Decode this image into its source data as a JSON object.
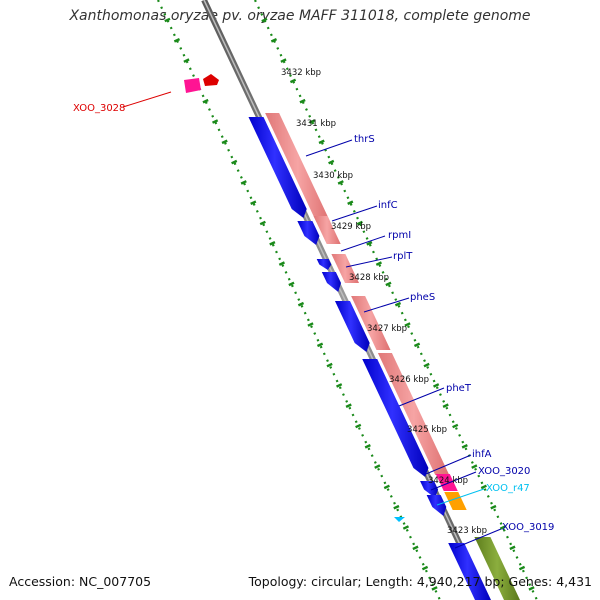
{
  "title": "Xanthomonas oryzae pv. oryzae MAFF 311018, complete genome",
  "footer": {
    "accession": "Accession: NC_007705",
    "summary": "Topology: circular; Length: 4,940,217 bp; Genes: 4,431"
  },
  "colors": {
    "backbone": "#808080",
    "ruler": "#1a8a1a",
    "gene_forward": "#0000ee",
    "cds_pink": "#f08c8c",
    "tRNA": "#ff1493",
    "rRNA": "#ffa000",
    "misc": "#00c0ff",
    "olive": "#6b8e23",
    "red": "#dd0000",
    "label_dark": "#0000aa",
    "label_red": "#dd0000",
    "label_cyan": "#00c0f0"
  },
  "kbp_labels": [
    "3432 kbp",
    "3431 kbp",
    "3430 kbp",
    "3429 kbp",
    "3428 kbp",
    "3427 kbp",
    "3426 kbp",
    "3425 kbp",
    "3424 kbp",
    "3423 kbp"
  ],
  "gene_labels": [
    {
      "text": "XOO_3028",
      "color": "red"
    },
    {
      "text": "thrS",
      "color": "dark"
    },
    {
      "text": "infC",
      "color": "dark"
    },
    {
      "text": "rpmI",
      "color": "dark"
    },
    {
      "text": "rplT",
      "color": "dark"
    },
    {
      "text": "pheS",
      "color": "dark"
    },
    {
      "text": "pheT",
      "color": "dark"
    },
    {
      "text": "ihfA",
      "color": "dark"
    },
    {
      "text": "XOO_3020",
      "color": "dark"
    },
    {
      "text": "XOO_r47",
      "color": "cyan"
    },
    {
      "text": "XOO_3019",
      "color": "dark"
    }
  ]
}
